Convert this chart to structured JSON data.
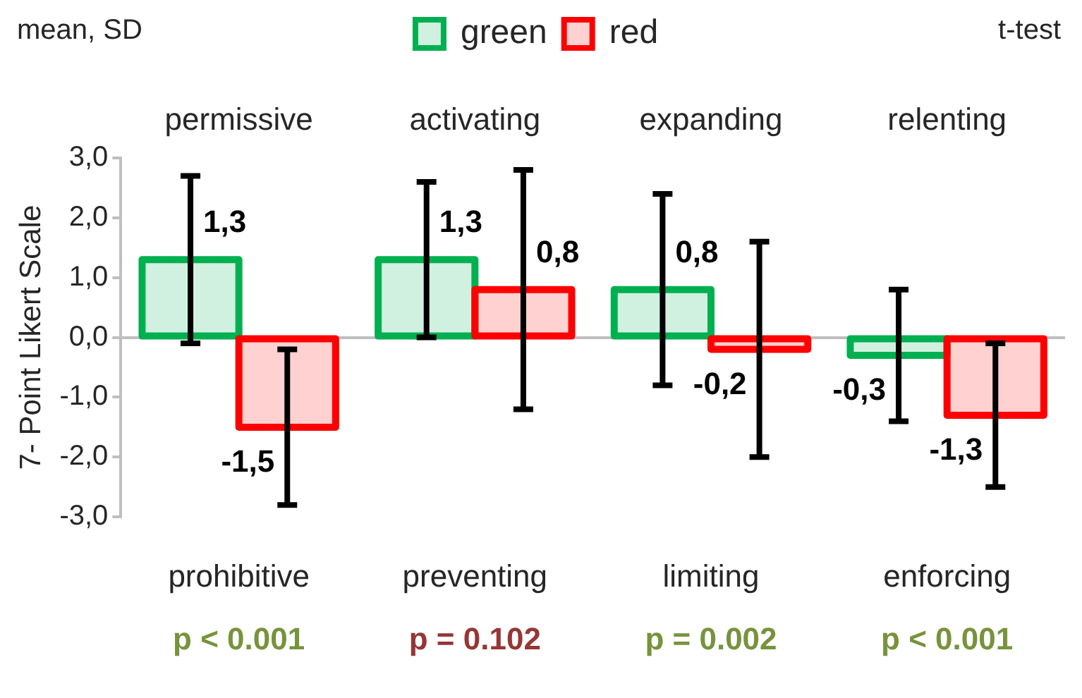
{
  "chart_data": {
    "type": "bar",
    "categories": [
      "prohibitive",
      "preventing",
      "limiting",
      "enforcing"
    ],
    "ylabel": "7- Point Likert Scale",
    "series": [
      {
        "name": "green",
        "color": "#00b050",
        "values": [
          1.3,
          1.3,
          0.8,
          -0.3
        ],
        "errors": [
          1.4,
          1.3,
          1.6,
          1.1
        ],
        "value_labels": [
          "1,3",
          "1,3",
          "0,8",
          "-0,3"
        ]
      },
      {
        "name": "red",
        "color": "#ff0000",
        "values": [
          -1.5,
          0.8,
          -0.2,
          -1.3
        ],
        "errors": [
          1.3,
          2.0,
          1.8,
          1.2
        ],
        "value_labels": [
          "-1,5",
          "0,8",
          "-0,2",
          "-1,3"
        ]
      }
    ],
    "ylim": [
      -3,
      3
    ],
    "yticks": [
      {
        "value": -3,
        "label": "-3,0"
      },
      {
        "value": -2,
        "label": "-2,0"
      },
      {
        "value": -1,
        "label": "-1,0"
      },
      {
        "value": 0,
        "label": "0,0"
      },
      {
        "value": 1,
        "label": "1,0"
      },
      {
        "value": 2,
        "label": "2,0"
      },
      {
        "value": 3,
        "label": "3,0"
      }
    ],
    "legend": "top",
    "annotations": [
      "mean, SD",
      "t-test",
      "permissive",
      "activating",
      "expanding",
      "relenting",
      "p < 0.001",
      "p = 0.102",
      "p = 0.002",
      "p < 0.001"
    ]
  }
}
